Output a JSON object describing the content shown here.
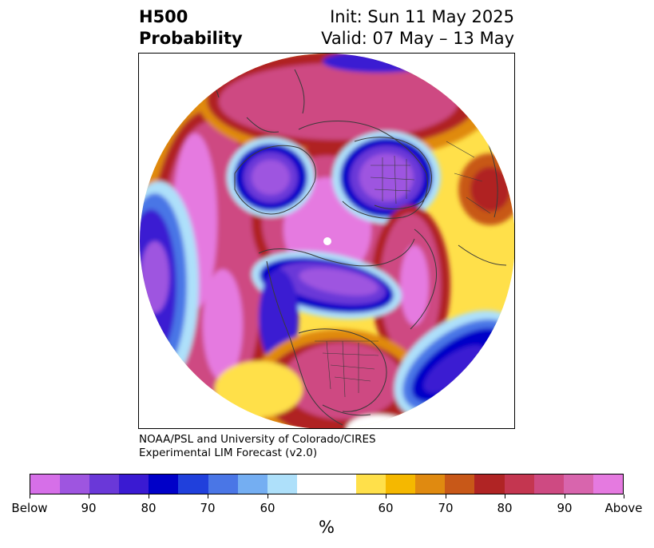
{
  "header": {
    "variable": "H500",
    "quantity": "Probability",
    "init": "Init: Sun 11 May 2025",
    "valid": "Valid: 07 May – 13 May"
  },
  "credit": {
    "line1": "NOAA/PSL and University of Colorado/CIRES",
    "line2": "Experimental LIM Forecast (v2.0)"
  },
  "colorbar": {
    "colors": [
      "#d66fe8",
      "#9e55e0",
      "#6a38d8",
      "#3a1ad2",
      "#0000c8",
      "#2040dc",
      "#4a76e6",
      "#74aef2",
      "#aee0fa",
      "#ffffff",
      "#ffffff",
      "#ffe04a",
      "#f5b800",
      "#e08a10",
      "#c85818",
      "#b02424",
      "#c43650",
      "#ce4a82",
      "#d865ad",
      "#e57ae0"
    ],
    "tick_labels": [
      "Below",
      "90",
      "80",
      "70",
      "60",
      "60",
      "70",
      "80",
      "90",
      "Above"
    ],
    "unit": "%"
  },
  "map": {
    "projection": "north-polar-stereographic",
    "features": [
      "contour-fill",
      "coastlines",
      "country-borders",
      "state-borders",
      "pole-marker"
    ],
    "line_color": "#3a3a3a"
  }
}
